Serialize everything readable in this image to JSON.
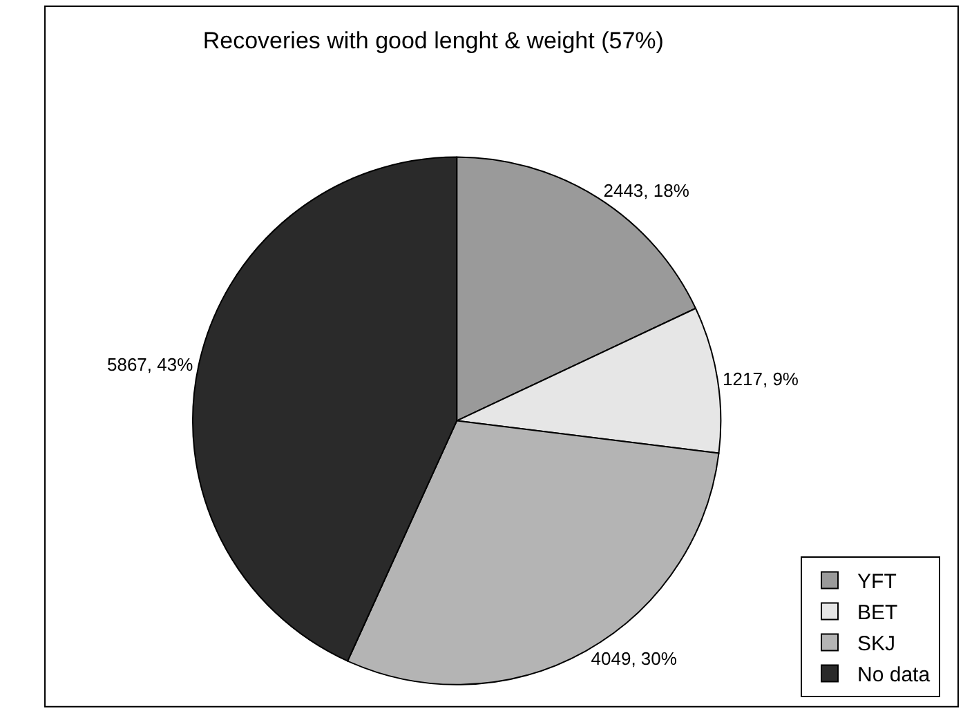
{
  "chart_data": {
    "type": "pie",
    "title": "Recoveries with good lenght & weight (57%)",
    "categories": [
      "YFT",
      "BET",
      "SKJ",
      "No data"
    ],
    "values": [
      2443,
      1217,
      4049,
      5867
    ],
    "value_labels": [
      "2443, 18%",
      "1217, 9%",
      "4049, 30%",
      "5867, 43%"
    ],
    "colors": [
      "#9a9a9a",
      "#e6e6e6",
      "#b4b4b4",
      "#2a2a2a"
    ],
    "legend": "bottom right"
  }
}
